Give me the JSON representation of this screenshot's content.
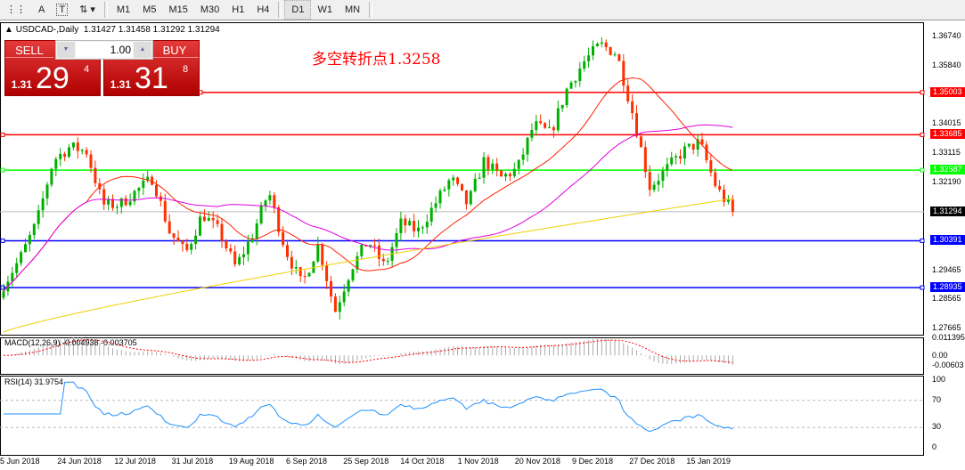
{
  "toolbar": {
    "tools": [
      "A",
      "T"
    ],
    "timeframes": [
      "M1",
      "M5",
      "M15",
      "M30",
      "H1",
      "H4",
      "D1",
      "W1",
      "MN"
    ],
    "active": "D1"
  },
  "symbol": {
    "name": "USDCAD-,Daily",
    "ohlc": "1.31427 1.31458 1.31292 1.31294"
  },
  "trade": {
    "sell_label": "SELL",
    "buy_label": "BUY",
    "lot": "1.00",
    "sell_prefix": "1.31",
    "sell_big": "29",
    "sell_sup": "4",
    "buy_prefix": "1.31",
    "buy_big": "31",
    "buy_sup": "8"
  },
  "annotation": "多空转折点1.3258",
  "price_axis": [
    "1.36740",
    "1.35840",
    "1.34015",
    "1.33115",
    "1.32190",
    "1.29465",
    "1.28565",
    "1.27665"
  ],
  "hlines": [
    {
      "price": "1.35003",
      "color": "#ff0000"
    },
    {
      "price": "1.33685",
      "color": "#ff0000"
    },
    {
      "price": "1.32587",
      "color": "#00ff00"
    },
    {
      "price": "1.30391",
      "color": "#0000ff"
    },
    {
      "price": "1.28935",
      "color": "#0000ff"
    }
  ],
  "current_price": "1.31294",
  "macd": {
    "label": "MACD(12,26,9) -0.004938 -0.003705",
    "axis": [
      "0.011395",
      "0.00",
      "-0.00603"
    ]
  },
  "rsi": {
    "label": "RSI(14) 31.9754",
    "axis": [
      "100",
      "70",
      "30",
      "0"
    ]
  },
  "dates": [
    "5 Jun 2018",
    "24 Jun 2018",
    "12 Jul 2018",
    "31 Jul 2018",
    "19 Aug 2018",
    "6 Sep 2018",
    "25 Sep 2018",
    "14 Oct 2018",
    "1 Nov 2018",
    "20 Nov 2018",
    "9 Dec 2018",
    "27 Dec 2018",
    "15 Jan 2019"
  ],
  "chart_data": {
    "type": "candlestick",
    "symbol": "USDCAD",
    "timeframe": "Daily",
    "ylim": [
      1.27665,
      1.3674
    ],
    "approx_close_path": [
      1.2902,
      1.2985,
      1.3096,
      1.3289,
      1.3331,
      1.3317,
      1.3151,
      1.3151,
      1.3193,
      1.3234,
      1.3068,
      1.3,
      1.3123,
      1.3068,
      1.2957,
      1.3054,
      1.3193,
      1.3013,
      1.2902,
      1.3027,
      1.2819,
      1.2957,
      1.304,
      1.2957,
      1.3096,
      1.3068,
      1.3151,
      1.3234,
      1.3151,
      1.3289,
      1.3234,
      1.3262,
      1.34,
      1.3372,
      1.3511,
      1.3594,
      1.3649,
      1.3621,
      1.3428,
      1.3206,
      1.3262,
      1.3317,
      1.3345,
      1.3206,
      1.3129
    ],
    "colors": {
      "bull": "#00b000",
      "bear": "#ff3000",
      "ma_fast": "#ff2000",
      "ma_mid": "#e000e0",
      "ma_slow": "#f0d000",
      "rsi": "#1e90ff"
    }
  }
}
